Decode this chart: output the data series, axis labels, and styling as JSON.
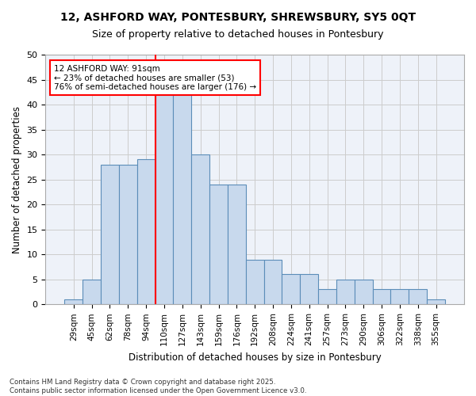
{
  "title_line1": "12, ASHFORD WAY, PONTESBURY, SHREWSBURY, SY5 0QT",
  "title_line2": "Size of property relative to detached houses in Pontesbury",
  "xlabel": "Distribution of detached houses by size in Pontesbury",
  "ylabel": "Number of detached properties",
  "bar_values": [
    1,
    5,
    28,
    28,
    29,
    42,
    42,
    30,
    24,
    24,
    9,
    9,
    6,
    6,
    3,
    5,
    5,
    3,
    3,
    3,
    1
  ],
  "categories": [
    "29sqm",
    "45sqm",
    "62sqm",
    "78sqm",
    "94sqm",
    "110sqm",
    "127sqm",
    "143sqm",
    "159sqm",
    "176sqm",
    "192sqm",
    "208sqm",
    "224sqm",
    "241sqm",
    "257sqm",
    "273sqm",
    "290sqm",
    "306sqm",
    "322sqm",
    "338sqm",
    "355sqm"
  ],
  "bar_color": "#c8d9ed",
  "bar_edge_color": "#5b8db8",
  "grid_color": "#cccccc",
  "background_color": "#eef2f9",
  "red_line_index": 4.5,
  "annotation_text": "12 ASHFORD WAY: 91sqm\n← 23% of detached houses are smaller (53)\n76% of semi-detached houses are larger (176) →",
  "annotation_box_color": "white",
  "annotation_box_edge_color": "red",
  "footer_text": "Contains HM Land Registry data © Crown copyright and database right 2025.\nContains public sector information licensed under the Open Government Licence v3.0.",
  "ylim": [
    0,
    50
  ],
  "yticks": [
    0,
    5,
    10,
    15,
    20,
    25,
    30,
    35,
    40,
    45,
    50
  ]
}
